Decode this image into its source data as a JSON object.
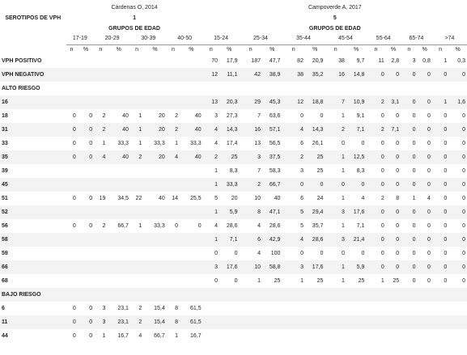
{
  "header": {
    "author_1": "Cárdenas O, 2014",
    "author_2": "Campoverde A, 2017",
    "row_label": "SEROTIPOS DE VPH",
    "study_1": "1",
    "study_2": "5",
    "group_1": "GRUPOS DE EDAD",
    "group_2": "GRUPOS DE EDAD",
    "ages_1": [
      "17-19",
      "20-29",
      "30-39",
      "40-50"
    ],
    "ages_2": [
      "15-24",
      "25-34",
      "35-44",
      "45-54",
      "55-64",
      "65-74",
      ">74"
    ],
    "n": "n",
    "pct": "%"
  },
  "rows": [
    {
      "label": "VPH POSITIVO",
      "cells": [
        null,
        null,
        null,
        null,
        null,
        null,
        null,
        null,
        "70",
        "17,9",
        "187",
        "47,7",
        "82",
        "20,9",
        "38",
        "9,7",
        "11",
        "2,8",
        "3",
        "0,8",
        "1",
        "0,3"
      ]
    },
    {
      "label": "VPH NEGATIVO",
      "cells": [
        null,
        null,
        null,
        null,
        null,
        null,
        null,
        null,
        "12",
        "11,1",
        "42",
        "38,9",
        "38",
        "35,2",
        "16",
        "14,8",
        "0",
        "0",
        "0",
        "0",
        "0",
        "0"
      ]
    },
    {
      "label": "ALTO RIESGO"
    },
    {
      "label": "16",
      "cells": [
        null,
        null,
        null,
        null,
        null,
        null,
        null,
        null,
        "13",
        "20,3",
        "29",
        "45,3",
        "12",
        "18,8",
        "7",
        "10,9",
        "2",
        "3,1",
        "0",
        "0",
        "1",
        "1,6"
      ]
    },
    {
      "label": "18",
      "cells": [
        "0",
        "0",
        "2",
        "40",
        "1",
        "20",
        "2",
        "40",
        "3",
        "27,3",
        "7",
        "63,6",
        "0",
        "0",
        "1",
        "9,1",
        "0",
        "0",
        "0",
        "0",
        "0",
        "0"
      ]
    },
    {
      "label": "31",
      "cells": [
        "0",
        "0",
        "2",
        "40",
        "1",
        "20",
        "2",
        "40",
        "4",
        "14,3",
        "16",
        "57,1",
        "4",
        "14,3",
        "2",
        "7,1",
        "2",
        "7,1",
        "0",
        "0",
        "0",
        "0"
      ]
    },
    {
      "label": "33",
      "cells": [
        "0",
        "0",
        "1",
        "33,3",
        "1",
        "33,3",
        "1",
        "33,3",
        "4",
        "17,4",
        "13",
        "56,5",
        "6",
        "26,1",
        "0",
        "0",
        "0",
        "0",
        "0",
        "0",
        "0",
        "0"
      ]
    },
    {
      "label": "35",
      "cells": [
        "0",
        "0",
        "4",
        "40",
        "2",
        "20",
        "4",
        "40",
        "2",
        "25",
        "3",
        "37,5",
        "2",
        "25",
        "1",
        "12,5",
        "0",
        "0",
        "0",
        "0",
        "0",
        "0"
      ]
    },
    {
      "label": "39",
      "cells": [
        null,
        null,
        null,
        null,
        null,
        null,
        null,
        null,
        "1",
        "8,3",
        "7",
        "58,3",
        "3",
        "25",
        "1",
        "8,3",
        "0",
        "0",
        "0",
        "0",
        "0",
        "0"
      ]
    },
    {
      "label": "45",
      "cells": [
        null,
        null,
        null,
        null,
        null,
        null,
        null,
        null,
        "1",
        "33,3",
        "2",
        "66,7",
        "0",
        "0",
        "0",
        "0",
        "0",
        "0",
        "0",
        "0",
        "0",
        "0"
      ]
    },
    {
      "label": "51",
      "cells": [
        "0",
        "0",
        "19",
        "34,5",
        "22",
        "40",
        "14",
        "25,5",
        "5",
        "20",
        "10",
        "40",
        "6",
        "24",
        "1",
        "4",
        "2",
        "8",
        "1",
        "4",
        "0",
        "0"
      ]
    },
    {
      "label": "52",
      "cells": [
        null,
        null,
        null,
        null,
        null,
        null,
        null,
        null,
        "1",
        "5,9",
        "8",
        "47,1",
        "5",
        "29,4",
        "3",
        "17,6",
        "0",
        "0",
        "0",
        "0",
        "0",
        "0"
      ]
    },
    {
      "label": "56",
      "cells": [
        "0",
        "0",
        "2",
        "66,7",
        "1",
        "33,3",
        "0",
        "0",
        "4",
        "28,6",
        "4",
        "28,6",
        "5",
        "35,7",
        "1",
        "7,1",
        "0",
        "0",
        "0",
        "0",
        "0",
        "0"
      ]
    },
    {
      "label": "58",
      "cells": [
        null,
        null,
        null,
        null,
        null,
        null,
        null,
        null,
        "1",
        "7,1",
        "6",
        "42,9",
        "4",
        "28,6",
        "3",
        "21,4",
        "0",
        "0",
        "0",
        "0",
        "0",
        "0"
      ]
    },
    {
      "label": "59",
      "cells": [
        null,
        null,
        null,
        null,
        null,
        null,
        null,
        null,
        "0",
        "0",
        "4",
        "100",
        "0",
        "0",
        "0",
        "0",
        "0",
        "0",
        "0",
        "0",
        "0",
        "0"
      ]
    },
    {
      "label": "66",
      "cells": [
        null,
        null,
        null,
        null,
        null,
        null,
        null,
        null,
        "3",
        "17,6",
        "10",
        "58,8",
        "3",
        "17,6",
        "1",
        "5,9",
        "0",
        "0",
        "0",
        "0",
        "0",
        "0"
      ]
    },
    {
      "label": "68",
      "cells": [
        null,
        null,
        null,
        null,
        null,
        null,
        null,
        null,
        "0",
        "0",
        "1",
        "25",
        "1",
        "25",
        "1",
        "25",
        "1",
        "25",
        "0",
        "0",
        "0",
        "0"
      ]
    },
    {
      "label": "BAJO RIESGO"
    },
    {
      "label": "6",
      "cells": [
        "0",
        "0",
        "3",
        "23,1",
        "2",
        "15,4",
        "8",
        "61,5",
        null,
        null,
        null,
        null,
        null,
        null,
        null,
        null,
        null,
        null,
        null,
        null,
        null,
        null
      ]
    },
    {
      "label": "11",
      "cells": [
        "0",
        "0",
        "3",
        "23,1",
        "2",
        "15,4",
        "8",
        "61,5",
        null,
        null,
        null,
        null,
        null,
        null,
        null,
        null,
        null,
        null,
        null,
        null,
        null,
        null
      ]
    },
    {
      "label": "44",
      "cells": [
        "0",
        "0",
        "1",
        "16,7",
        "4",
        "66,7",
        "1",
        "16,7",
        null,
        null,
        null,
        null,
        null,
        null,
        null,
        null,
        null,
        null,
        null,
        null,
        null,
        null
      ]
    }
  ]
}
